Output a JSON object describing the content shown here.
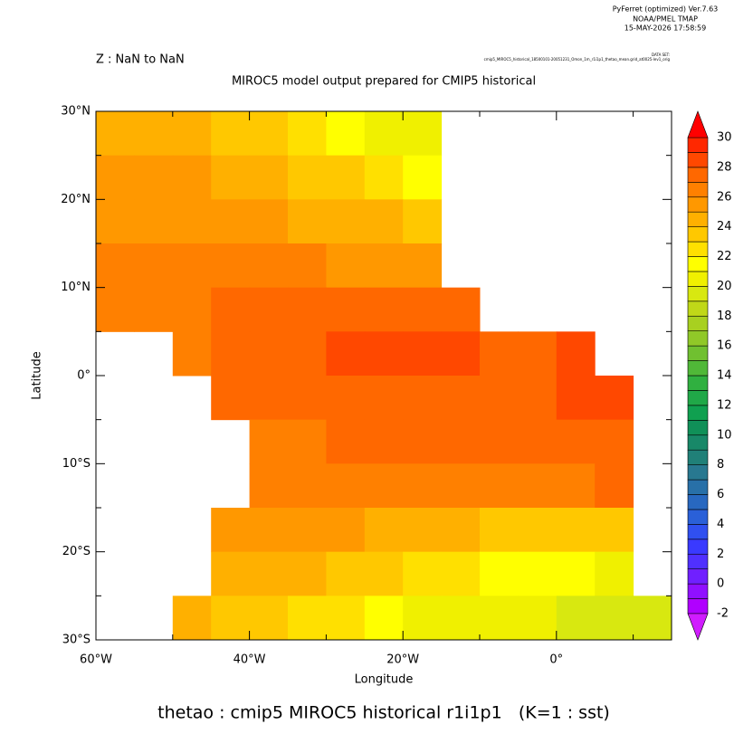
{
  "chart_data": {
    "type": "heatmap",
    "header": [
      "PyFerret (optimized) Ver.7.63",
      "NOAA/PMEL TMAP",
      "15-MAY-2026 17:58:59"
    ],
    "subtitle": "Z : NaN to NaN",
    "dataset_label": "DATA SET:",
    "dataset": "cmip5_MIROC5_historical_18500101-20051231_Omon_1m_r1i1p1_thetao_mean.grid_at0025-lev1_orig",
    "title": "MIROC5 model output prepared for CMIP5 historical",
    "xlabel": "Longitude",
    "ylabel": "Latitude",
    "caption": "thetao : cmip5 MIROC5 historical r1i1p1   (K=1 : sst)",
    "xlim": [
      -60,
      15
    ],
    "ylim": [
      -30,
      30
    ],
    "xticks": [
      {
        "value": -60,
        "label": "60°W"
      },
      {
        "value": -40,
        "label": "40°W"
      },
      {
        "value": -20,
        "label": "20°W"
      },
      {
        "value": 0,
        "label": "0°"
      }
    ],
    "xminorticks": [
      -50,
      -30,
      -10,
      10
    ],
    "yticks": [
      {
        "value": 30,
        "label": "30°N"
      },
      {
        "value": 20,
        "label": "20°N"
      },
      {
        "value": 10,
        "label": "10°N"
      },
      {
        "value": 0,
        "label": "0°"
      },
      {
        "value": -10,
        "label": "10°S"
      },
      {
        "value": -20,
        "label": "20°S"
      },
      {
        "value": -30,
        "label": "30°S"
      }
    ],
    "yminorticks": [
      25,
      15,
      5,
      -5,
      -15,
      -25
    ],
    "x": [
      -57.5,
      -52.5,
      -47.5,
      -42.5,
      -37.5,
      -32.5,
      -27.5,
      -22.5,
      -17.5,
      -12.5,
      -7.5,
      -2.5,
      2.5,
      7.5,
      12.5
    ],
    "y": [
      27.5,
      22.5,
      17.5,
      12.5,
      7.5,
      2.5,
      -2.5,
      -7.5,
      -12.5,
      -17.5,
      -22.5,
      -27.5
    ],
    "z": [
      [
        24,
        24,
        24,
        23,
        23,
        22,
        21,
        20,
        20,
        null,
        null,
        null,
        null,
        null,
        null
      ],
      [
        25,
        25,
        25,
        24,
        24,
        23,
        23,
        22,
        21,
        null,
        null,
        null,
        null,
        null,
        null
      ],
      [
        25,
        25,
        25,
        25,
        25,
        24,
        24,
        24,
        23,
        null,
        null,
        null,
        null,
        null,
        null
      ],
      [
        26,
        26,
        26,
        26,
        26,
        26,
        25,
        25,
        25,
        null,
        null,
        null,
        null,
        null,
        null
      ],
      [
        26,
        26,
        26,
        27,
        27,
        27,
        27,
        27,
        27,
        27,
        null,
        null,
        null,
        null,
        null
      ],
      [
        null,
        null,
        26,
        27,
        27,
        27,
        28,
        28,
        28,
        28,
        27,
        27,
        28,
        null,
        null
      ],
      [
        null,
        null,
        null,
        27,
        27,
        27,
        27,
        27,
        27,
        27,
        27,
        27,
        28,
        28,
        null
      ],
      [
        null,
        null,
        null,
        null,
        26,
        26,
        27,
        27,
        27,
        27,
        27,
        27,
        27,
        27,
        null
      ],
      [
        null,
        null,
        null,
        null,
        26,
        26,
        26,
        26,
        26,
        26,
        26,
        26,
        26,
        27,
        null
      ],
      [
        null,
        null,
        null,
        25,
        25,
        25,
        25,
        24,
        24,
        24,
        23,
        23,
        23,
        23,
        null
      ],
      [
        null,
        null,
        null,
        24,
        24,
        24,
        23,
        23,
        22,
        22,
        21,
        21,
        21,
        20,
        null
      ],
      [
        null,
        null,
        24,
        23,
        23,
        22,
        22,
        21,
        20,
        20,
        20,
        20,
        19,
        19,
        19
      ]
    ],
    "levels": [
      -2,
      -1,
      0,
      1,
      2,
      3,
      4,
      5,
      6,
      7,
      8,
      9,
      10,
      11,
      12,
      13,
      14,
      15,
      16,
      17,
      18,
      19,
      20,
      21,
      22,
      23,
      24,
      25,
      26,
      27,
      28,
      29,
      30
    ],
    "colorbar_ticks": [
      -2,
      0,
      2,
      4,
      6,
      8,
      10,
      12,
      14,
      16,
      18,
      20,
      22,
      24,
      26,
      28,
      30
    ],
    "colors": [
      "#d01cff",
      "#b000ff",
      "#9010ff",
      "#7020ff",
      "#5030ff",
      "#3a3aff",
      "#3050f0",
      "#2a60d8",
      "#2868c0",
      "#2870a8",
      "#287890",
      "#208078",
      "#188868",
      "#109058",
      "#10a050",
      "#20a848",
      "#30b040",
      "#50b838",
      "#70c030",
      "#90c828",
      "#a8d020",
      "#c0d818",
      "#d8e810",
      "#f0f000",
      "#ffff00",
      "#ffe000",
      "#ffc800",
      "#ffb000",
      "#ff9800",
      "#ff8000",
      "#ff6800",
      "#ff4800",
      "#ff2800",
      "#ff0000"
    ]
  }
}
